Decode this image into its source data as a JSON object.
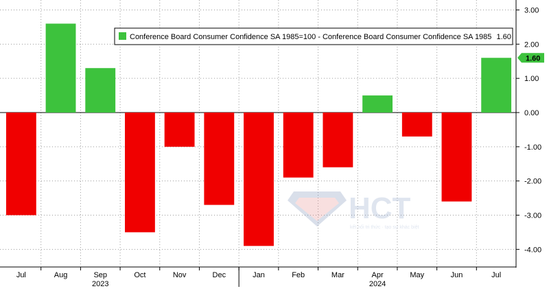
{
  "chart_data": {
    "type": "bar",
    "categories": [
      "Jul",
      "Aug",
      "Sep",
      "Oct",
      "Nov",
      "Dec",
      "Jan",
      "Feb",
      "Mar",
      "Apr",
      "May",
      "Jun",
      "Jul"
    ],
    "values": [
      -3.0,
      2.6,
      1.3,
      -3.5,
      -1.0,
      -2.7,
      -3.9,
      -1.9,
      -1.6,
      0.5,
      -0.7,
      -2.6,
      1.6
    ],
    "year_labels": [
      {
        "label": "2023",
        "category_index": 2
      },
      {
        "label": "2024",
        "category_index": 9
      }
    ],
    "ylim": [
      -4.4,
      3.0
    ],
    "yticks": [
      "3.00",
      "2.00",
      "1.00",
      "0.00",
      "-1.00",
      "-2.00",
      "-3.00",
      "-4.00"
    ],
    "ytick_values": [
      3,
      2,
      1,
      0,
      -1,
      -2,
      -3,
      -4
    ],
    "y_axis_position": "right",
    "grid": true,
    "legend": {
      "position": "top-right",
      "label": "Conference Board Consumer Confidence SA 1985=100 - Conference Board Consumer Confidence SA 1985",
      "last_value": "1.60"
    },
    "last_value_badge": "1.60",
    "colors": {
      "positive": "#3dc23d",
      "negative": "#f00000",
      "badge": "#3dc23d"
    }
  },
  "watermark": {
    "brand": "HCT",
    "tagline": "kết nối tri thức · tạo sự khác biệt"
  }
}
